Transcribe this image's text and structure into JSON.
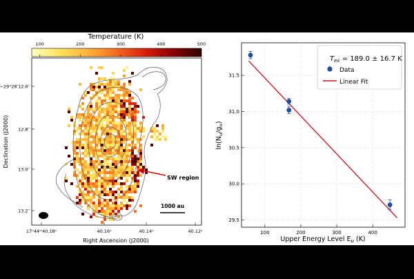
{
  "chart_data": [
    {
      "type": "heatmap",
      "colorbar": {
        "label": "Temperature (K)",
        "ticks": [
          "100",
          "200",
          "300",
          "400",
          "500"
        ],
        "range": [
          80,
          500
        ],
        "colors": [
          "#ffffc0",
          "#ffe25a",
          "#fdb23a",
          "#f36a1d",
          "#d91e0b",
          "#8a0000",
          "#2c0000"
        ]
      },
      "xlabel": "Right Ascension (J2000)",
      "ylabel": "Declination (J2000)",
      "x_ticks": [
        "17ʰ44ᵐ40.18ˢ",
        "40.16ˢ",
        "40.14ˢ",
        "40.12ˢ"
      ],
      "y_ticks": [
        "−29°28′12.6″",
        "12.8″",
        "13.0″",
        "13.2″"
      ],
      "annotation": "SW region",
      "scalebar_label": "1000 au"
    },
    {
      "type": "scatter",
      "title_tex": "T",
      "title_tex_sub": "ex",
      "title_value": " = 189.0 ± 16.7 K",
      "legend": [
        {
          "label": "Data",
          "color": "#1f4ea8"
        },
        {
          "label": "Linear Fit",
          "color": "#c01020"
        }
      ],
      "legend_position": "top-right",
      "xlabel": "Upper Energy Level E",
      "xlabel_sub": "u",
      "xlabel_unit": " (K)",
      "ylabel": "ln(N",
      "ylabel_sub": "u",
      "ylabel_mid": "/g",
      "ylabel_sub2": "u",
      "ylabel_end": ")",
      "xlim": [
        35,
        490
      ],
      "ylim": [
        29.4,
        31.95
      ],
      "x_ticks": [
        100,
        200,
        300,
        400
      ],
      "y_ticks": [
        29.5,
        30.0,
        30.5,
        31.0,
        31.5
      ],
      "y_tick_labels": [
        "29.5",
        "30.0",
        "30.5",
        "31.0",
        "31.5"
      ],
      "grid": true,
      "points": [
        {
          "x": 60,
          "y": 31.78,
          "err": 0.05
        },
        {
          "x": 167,
          "y": 31.14,
          "err": 0.04
        },
        {
          "x": 167,
          "y": 31.02,
          "err": 0.05
        },
        {
          "x": 448,
          "y": 29.71,
          "err": 0.07
        }
      ],
      "fit_line": {
        "x": [
          55,
          468
        ],
        "y": [
          31.7,
          29.53
        ]
      }
    }
  ]
}
